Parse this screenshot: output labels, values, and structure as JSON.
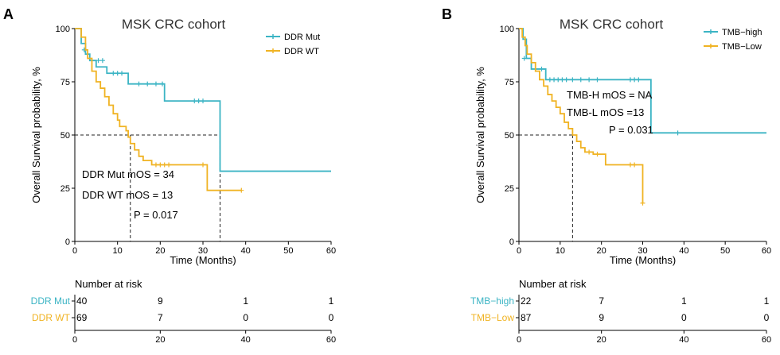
{
  "chart_data": [
    {
      "panel_label": "A",
      "type": "line",
      "subtype": "kaplan-meier",
      "title": "MSK CRC cohort",
      "xlabel": "Time (Months)",
      "ylabel": "Overall Survival probability, %",
      "xlim": [
        0,
        60
      ],
      "ylim": [
        0,
        100
      ],
      "xticks": [
        0,
        10,
        20,
        30,
        40,
        50,
        60
      ],
      "yticks": [
        0,
        25,
        50,
        75,
        100
      ],
      "colors": [
        "#3bb4c4",
        "#f0b323"
      ],
      "legend_position": "top-right",
      "series": [
        {
          "name": "DDR Mut",
          "x": [
            0,
            1.5,
            2.5,
            3.5,
            5,
            7.5,
            12.5,
            21,
            34,
            60
          ],
          "y": [
            100,
            93,
            88,
            85,
            82,
            79,
            74,
            66,
            33,
            33
          ],
          "censored_x": [
            2.2,
            5.5,
            6.5,
            9,
            10,
            11,
            15,
            17,
            19,
            20.5,
            28,
            29,
            30
          ],
          "censored_y": [
            90,
            85,
            85,
            79,
            79,
            79,
            74,
            74,
            74,
            74,
            66,
            66,
            66
          ]
        },
        {
          "name": "DDR WT",
          "x": [
            0,
            1.5,
            2.5,
            3,
            4,
            5,
            6,
            7,
            8,
            9,
            10,
            10.5,
            12,
            12.5,
            13,
            14,
            15,
            16,
            18,
            25,
            31,
            39
          ],
          "y": [
            100,
            96,
            90,
            86,
            80,
            75,
            72,
            68,
            64,
            60,
            57,
            54,
            52,
            49,
            46,
            43,
            40,
            38,
            36,
            36,
            24,
            24
          ],
          "censored_x": [
            19,
            20,
            21,
            22,
            30,
            39
          ],
          "censored_y": [
            36,
            36,
            36,
            36,
            36,
            24
          ]
        }
      ],
      "median_lines": [
        13,
        34
      ],
      "annotations": [
        "DDR Mut mOS = 34",
        "DDR WT mOS = 13",
        "P = 0.017"
      ],
      "risk_table": {
        "title": "Number at risk",
        "times": [
          0,
          20,
          40,
          60
        ],
        "rows": [
          {
            "label": "DDR Mut",
            "values": [
              40,
              9,
              1,
              1
            ]
          },
          {
            "label": "DDR WT",
            "values": [
              69,
              7,
              0,
              0
            ]
          }
        ]
      }
    },
    {
      "panel_label": "B",
      "type": "line",
      "subtype": "kaplan-meier",
      "title": "MSK CRC cohort",
      "xlabel": "Time (Months)",
      "ylabel": "Overall Survival probability, %",
      "xlim": [
        0,
        60
      ],
      "ylim": [
        0,
        100
      ],
      "xticks": [
        0,
        10,
        20,
        30,
        40,
        50,
        60
      ],
      "yticks": [
        0,
        25,
        50,
        75,
        100
      ],
      "colors": [
        "#3bb4c4",
        "#f0b323"
      ],
      "legend_position": "top-right",
      "series": [
        {
          "name": "TMB−high",
          "x": [
            0,
            1,
            1.8,
            3,
            6.5,
            32,
            60
          ],
          "y": [
            100,
            95,
            86,
            81,
            76,
            51,
            51
          ],
          "censored_x": [
            1.3,
            5.5,
            7.5,
            8.5,
            9.5,
            10.5,
            11.5,
            13,
            15,
            17,
            19,
            27,
            28,
            29,
            38.5
          ],
          "censored_y": [
            86,
            81,
            76,
            76,
            76,
            76,
            76,
            76,
            76,
            76,
            76,
            76,
            76,
            76,
            51
          ]
        },
        {
          "name": "TMB−Low",
          "x": [
            0,
            0.8,
            1.5,
            2,
            3,
            4,
            5,
            6,
            7,
            8,
            9,
            10,
            11,
            12,
            13,
            14,
            15,
            16,
            18,
            21,
            29,
            30
          ],
          "y": [
            100,
            96,
            92,
            88,
            84,
            80,
            76,
            73,
            69,
            66,
            63,
            60,
            56,
            53,
            50,
            47,
            44,
            42,
            41,
            36,
            36,
            18
          ],
          "censored_x": [
            17,
            19,
            27,
            28,
            30
          ],
          "censored_y": [
            42,
            41,
            36,
            36,
            18
          ]
        }
      ],
      "median_lines": [
        13
      ],
      "annotations": [
        "TMB-H mOS = NA",
        "TMB-L mOS =13",
        "P = 0.031"
      ],
      "risk_table": {
        "title": "Number at risk",
        "times": [
          0,
          20,
          40,
          60
        ],
        "rows": [
          {
            "label": "TMB−high",
            "values": [
              22,
              7,
              1,
              1
            ]
          },
          {
            "label": "TMB−Low",
            "values": [
              87,
              9,
              0,
              0
            ]
          }
        ]
      }
    }
  ]
}
